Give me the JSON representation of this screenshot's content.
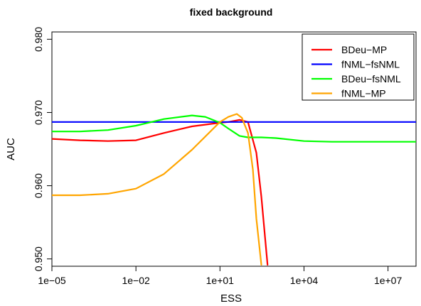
{
  "chart_data": {
    "type": "line",
    "title": "fixed background",
    "xlabel": "ESS",
    "ylabel": "AUC",
    "x_scale": "log",
    "xlim": [
      1e-05,
      100000000.0
    ],
    "ylim": [
      0.949,
      0.981
    ],
    "x_ticks": [
      1e-05,
      0.01,
      10.0,
      10000.0,
      10000000.0
    ],
    "x_tick_labels": [
      "1e−05",
      "1e−02",
      "1e+01",
      "1e+04",
      "1e+07"
    ],
    "y_ticks": [
      0.95,
      0.96,
      0.97,
      0.98
    ],
    "y_tick_labels": [
      "0.950",
      "0.960",
      "0.970",
      "0.980"
    ],
    "grid": false,
    "legend_position": "top-right",
    "series": [
      {
        "name": "BDeu−MP",
        "color": "#ff0000",
        "x": [
          1e-05,
          0.0001,
          0.001,
          0.01,
          0.1,
          1,
          10,
          20,
          50,
          100,
          200,
          300,
          500
        ],
        "y": [
          0.9664,
          0.9662,
          0.9661,
          0.9662,
          0.9672,
          0.9681,
          0.9686,
          0.9687,
          0.969,
          0.9687,
          0.9645,
          0.9585,
          0.9492
        ]
      },
      {
        "name": "fNML−fsNML",
        "color": "#0000ff",
        "x": [
          1e-05,
          100000000.0
        ],
        "y": [
          0.9687,
          0.9687
        ]
      },
      {
        "name": "BDeu−fsNML",
        "color": "#00ff00",
        "x": [
          1e-05,
          0.0001,
          0.001,
          0.01,
          0.1,
          1,
          3,
          10,
          20,
          50,
          100,
          300,
          1000,
          10000,
          100000,
          1000000.0,
          10000000.0,
          100000000.0
        ],
        "y": [
          0.9674,
          0.9674,
          0.9676,
          0.9682,
          0.9691,
          0.9696,
          0.9694,
          0.9686,
          0.9678,
          0.9668,
          0.9666,
          0.9666,
          0.9665,
          0.9661,
          0.966,
          0.966,
          0.966,
          0.966
        ]
      },
      {
        "name": "fNML−MP",
        "color": "#ffa500",
        "x": [
          1e-05,
          0.0001,
          0.001,
          0.01,
          0.1,
          1,
          10,
          20,
          40,
          60,
          100,
          150,
          200,
          300
        ],
        "y": [
          0.9587,
          0.9587,
          0.9589,
          0.9596,
          0.9616,
          0.9649,
          0.9687,
          0.9694,
          0.9698,
          0.9693,
          0.9672,
          0.9622,
          0.9555,
          0.9492
        ]
      }
    ]
  }
}
